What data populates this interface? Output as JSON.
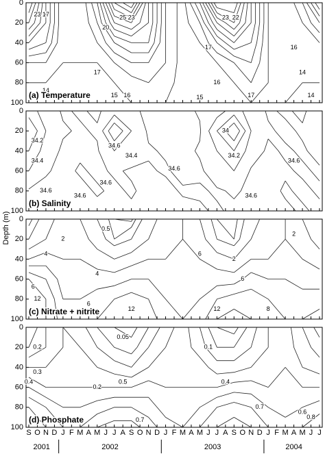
{
  "ylabel": "Depth (m)",
  "x_axis": {
    "categories": [
      "S",
      "O",
      "N",
      "D",
      "J",
      "F",
      "M",
      "A",
      "M",
      "J",
      "J",
      "A",
      "S",
      "O",
      "N",
      "D",
      "J",
      "F",
      "M",
      "A",
      "M",
      "J",
      "J",
      "A",
      "S",
      "O",
      "N",
      "D",
      "J",
      "F",
      "M",
      "A",
      "M",
      "J",
      "J"
    ],
    "years": [
      "2001",
      "2002",
      "2003",
      "2004"
    ]
  },
  "chart_data": [
    {
      "type": "contour",
      "title": "(a) Temperature",
      "xlim": [
        0,
        34
      ],
      "ylim": [
        0,
        100
      ],
      "y_inverted": true,
      "yticks": [
        0,
        20,
        40,
        60,
        80,
        100
      ],
      "x": [
        0,
        2,
        4,
        6,
        8,
        10,
        12,
        14,
        16,
        18,
        20,
        22,
        24,
        26,
        28,
        30,
        32,
        34
      ],
      "y": [
        0,
        20,
        40,
        60,
        80,
        100
      ],
      "z": [
        [
          24,
          22,
          19,
          16,
          15,
          14
        ],
        [
          19,
          19,
          18,
          16,
          15,
          14
        ],
        [
          15,
          15,
          15,
          15,
          14.5,
          14
        ],
        [
          15,
          15,
          15,
          15,
          14.5,
          14
        ],
        [
          18,
          17,
          16,
          15,
          14.5,
          14
        ],
        [
          24,
          21,
          18,
          16,
          15,
          14.5
        ],
        [
          26,
          22,
          19,
          17,
          15.5,
          15
        ],
        [
          20,
          20,
          19,
          17,
          16,
          15
        ],
        [
          16,
          16,
          16,
          16,
          15.5,
          15
        ],
        [
          14.5,
          14.5,
          14.5,
          14.5,
          14.5,
          14
        ],
        [
          18,
          16,
          15,
          14.5,
          14,
          14
        ],
        [
          24,
          20,
          17,
          15,
          14.5,
          14
        ],
        [
          24,
          22,
          19,
          16,
          15,
          14.5
        ],
        [
          19,
          19,
          18,
          17,
          16,
          15
        ],
        [
          15,
          15,
          15,
          15,
          15,
          14.5
        ],
        [
          14,
          14,
          14,
          14,
          14,
          14
        ],
        [
          16,
          15,
          14.5,
          14,
          14,
          13.5
        ],
        [
          20,
          17,
          15,
          14.5,
          14,
          13.5
        ]
      ],
      "levels": [
        14,
        15,
        16,
        17,
        18,
        19,
        20,
        21,
        22,
        23,
        24,
        25
      ],
      "contour_labels": [
        {
          "x": 1,
          "y": 12,
          "value": 23
        },
        {
          "x": 2,
          "y": 12,
          "value": 17
        },
        {
          "x": 9,
          "y": 25,
          "value": 20
        },
        {
          "x": 11,
          "y": 15,
          "value": 25
        },
        {
          "x": 12,
          "y": 15,
          "value": 23
        },
        {
          "x": 8,
          "y": 70,
          "value": 17
        },
        {
          "x": 10,
          "y": 93,
          "value": 15
        },
        {
          "x": 11.5,
          "y": 93,
          "value": 16
        },
        {
          "x": 2,
          "y": 88,
          "value": 14
        },
        {
          "x": 23,
          "y": 15,
          "value": 23
        },
        {
          "x": 24.2,
          "y": 15,
          "value": 22
        },
        {
          "x": 21,
          "y": 45,
          "value": 17
        },
        {
          "x": 22,
          "y": 80,
          "value": 16
        },
        {
          "x": 20,
          "y": 95,
          "value": 15
        },
        {
          "x": 31,
          "y": 45,
          "value": 16
        },
        {
          "x": 32,
          "y": 70,
          "value": 14
        },
        {
          "x": 33,
          "y": 93,
          "value": 14
        },
        {
          "x": 26,
          "y": 93,
          "value": 17
        }
      ]
    },
    {
      "type": "contour",
      "title": "(b) Salinity",
      "xlim": [
        0,
        34
      ],
      "ylim": [
        0,
        100
      ],
      "y_inverted": true,
      "yticks": [
        0,
        20,
        40,
        60,
        80,
        100
      ],
      "x": [
        0,
        2,
        4,
        6,
        8,
        10,
        12,
        14,
        16,
        18,
        20,
        22,
        24,
        26,
        28,
        30,
        32,
        34
      ],
      "y": [
        0,
        20,
        40,
        60,
        80,
        100
      ],
      "z": [
        [
          34.3,
          34.0,
          34.2,
          34.4,
          34.62,
          34.63
        ],
        [
          34.5,
          34.4,
          34.5,
          34.58,
          34.65,
          34.62
        ],
        [
          34.62,
          34.58,
          34.63,
          34.65,
          34.65,
          34.65
        ],
        [
          34.58,
          34.62,
          34.63,
          34.58,
          34.65,
          34.65
        ],
        [
          34.63,
          34.58,
          34.62,
          34.63,
          34.58,
          34.65
        ],
        [
          34.5,
          34.0,
          34.4,
          34.58,
          34.63,
          34.62
        ],
        [
          34.58,
          34.4,
          34.5,
          34.62,
          34.58,
          34.63
        ],
        [
          34.62,
          34.63,
          34.58,
          34.62,
          34.65,
          34.65
        ],
        [
          34.65,
          34.65,
          34.62,
          34.58,
          34.65,
          34.65
        ],
        [
          34.65,
          34.65,
          34.65,
          34.65,
          34.58,
          34.65
        ],
        [
          34.58,
          34.62,
          34.58,
          34.63,
          34.58,
          34.62
        ],
        [
          34.5,
          34.2,
          34.4,
          34.5,
          34.62,
          34.58
        ],
        [
          34.3,
          33.8,
          34.2,
          34.4,
          34.58,
          34.63
        ],
        [
          34.5,
          34.4,
          34.5,
          34.62,
          34.63,
          34.65
        ],
        [
          34.62,
          34.58,
          34.63,
          34.62,
          34.65,
          34.65
        ],
        [
          34.58,
          34.63,
          34.58,
          34.62,
          34.58,
          34.63
        ],
        [
          34.63,
          34.58,
          34.62,
          34.58,
          34.63,
          34.58
        ],
        [
          34.5,
          34.5,
          34.55,
          34.62,
          34.58,
          34.63
        ]
      ],
      "levels": [
        33.8,
        34.0,
        34.2,
        34.4,
        34.6
      ],
      "contour_labels": [
        {
          "x": 1,
          "y": 30,
          "value": 34.2
        },
        {
          "x": 1,
          "y": 50,
          "value": 34.4
        },
        {
          "x": 2,
          "y": 80,
          "value": 34.6
        },
        {
          "x": 10,
          "y": 35,
          "value": 34.6
        },
        {
          "x": 12,
          "y": 45,
          "value": 34.4
        },
        {
          "x": 6,
          "y": 85,
          "value": 34.6
        },
        {
          "x": 9,
          "y": 72,
          "value": 34.6
        },
        {
          "x": 17,
          "y": 58,
          "value": 34.6
        },
        {
          "x": 23,
          "y": 20,
          "value": 34.0
        },
        {
          "x": 24,
          "y": 45,
          "value": 34.2
        },
        {
          "x": 26,
          "y": 85,
          "value": 34.6
        },
        {
          "x": 31,
          "y": 50,
          "value": 34.6
        }
      ]
    },
    {
      "type": "contour",
      "title": "(c) Nitrate + nitrite",
      "xlim": [
        0,
        34
      ],
      "ylim": [
        0,
        100
      ],
      "y_inverted": true,
      "yticks": [
        0,
        20,
        40,
        60,
        80,
        100
      ],
      "x": [
        0,
        2,
        4,
        6,
        8,
        10,
        12,
        14,
        16,
        18,
        20,
        22,
        24,
        26,
        28,
        30,
        32,
        34
      ],
      "y": [
        0,
        20,
        40,
        60,
        80,
        100
      ],
      "z": [
        [
          0.5,
          2,
          6,
          12,
          13,
          13
        ],
        [
          3,
          4,
          7,
          10,
          12,
          12
        ],
        [
          5,
          5,
          6,
          7,
          8,
          9
        ],
        [
          4,
          5,
          6,
          7,
          8,
          9
        ],
        [
          2,
          3,
          5,
          7,
          9,
          10
        ],
        [
          0.5,
          1,
          4,
          7,
          10,
          12
        ],
        [
          0.3,
          2,
          5,
          8,
          11,
          12
        ],
        [
          3,
          4,
          6,
          8,
          10,
          11
        ],
        [
          5,
          5,
          6,
          7,
          8,
          9
        ],
        [
          6,
          6,
          6,
          7,
          7,
          8
        ],
        [
          4,
          5,
          6,
          7,
          8,
          9
        ],
        [
          1,
          2,
          5,
          7,
          10,
          12
        ],
        [
          0.5,
          1,
          4,
          7,
          11,
          13
        ],
        [
          3,
          4,
          6,
          9,
          11,
          12
        ],
        [
          5,
          5,
          6,
          8,
          10,
          11
        ],
        [
          6,
          6,
          7,
          8,
          9,
          10
        ],
        [
          4,
          5,
          6,
          7,
          9,
          10
        ],
        [
          2,
          3,
          5,
          7,
          9,
          11
        ]
      ],
      "levels": [
        0.5,
        1,
        2,
        4,
        6,
        8,
        10,
        12
      ],
      "contour_labels": [
        {
          "x": 1,
          "y": 80,
          "value": 12
        },
        {
          "x": 0.5,
          "y": 68,
          "value": 6
        },
        {
          "x": 2,
          "y": 35,
          "value": 4
        },
        {
          "x": 4,
          "y": 20,
          "value": 2
        },
        {
          "x": 9,
          "y": 10,
          "value": 0.5
        },
        {
          "x": 8,
          "y": 55,
          "value": 4
        },
        {
          "x": 7,
          "y": 85,
          "value": 6
        },
        {
          "x": 12,
          "y": 90,
          "value": 12
        },
        {
          "x": 20,
          "y": 35,
          "value": 6
        },
        {
          "x": 22,
          "y": 90,
          "value": 12
        },
        {
          "x": 24,
          "y": 40,
          "value": 2
        },
        {
          "x": 25,
          "y": 60,
          "value": 6
        },
        {
          "x": 28,
          "y": 90,
          "value": 8
        },
        {
          "x": 31,
          "y": 15,
          "value": 2
        }
      ]
    },
    {
      "type": "contour",
      "title": "(d) Phosphate",
      "xlim": [
        0,
        34
      ],
      "ylim": [
        0,
        100
      ],
      "y_inverted": true,
      "yticks": [
        0,
        20,
        40,
        60,
        80,
        100
      ],
      "x": [
        0,
        2,
        4,
        6,
        8,
        10,
        12,
        14,
        16,
        18,
        20,
        22,
        24,
        26,
        28,
        30,
        32,
        34
      ],
      "y": [
        0,
        20,
        40,
        60,
        80,
        100
      ],
      "z": [
        [
          0.1,
          0.2,
          0.4,
          0.6,
          0.8,
          0.9
        ],
        [
          0.3,
          0.3,
          0.4,
          0.5,
          0.7,
          0.8
        ],
        [
          0.4,
          0.4,
          0.45,
          0.5,
          0.6,
          0.7
        ],
        [
          0.35,
          0.4,
          0.45,
          0.5,
          0.6,
          0.7
        ],
        [
          0.2,
          0.3,
          0.4,
          0.5,
          0.65,
          0.8
        ],
        [
          0.1,
          0.2,
          0.35,
          0.5,
          0.7,
          0.85
        ],
        [
          0.05,
          0.15,
          0.3,
          0.5,
          0.7,
          0.85
        ],
        [
          0.2,
          0.3,
          0.4,
          0.55,
          0.65,
          0.75
        ],
        [
          0.35,
          0.4,
          0.45,
          0.5,
          0.55,
          0.65
        ],
        [
          0.45,
          0.45,
          0.45,
          0.5,
          0.55,
          0.6
        ],
        [
          0.3,
          0.35,
          0.45,
          0.5,
          0.6,
          0.7
        ],
        [
          0.1,
          0.2,
          0.35,
          0.5,
          0.7,
          0.8
        ],
        [
          0.05,
          0.2,
          0.35,
          0.55,
          0.75,
          0.85
        ],
        [
          0.25,
          0.3,
          0.4,
          0.55,
          0.7,
          0.8
        ],
        [
          0.4,
          0.4,
          0.45,
          0.5,
          0.6,
          0.7
        ],
        [
          0.45,
          0.45,
          0.5,
          0.5,
          0.55,
          0.65
        ],
        [
          0.3,
          0.35,
          0.4,
          0.5,
          0.6,
          0.7
        ],
        [
          0.15,
          0.25,
          0.35,
          0.5,
          0.65,
          0.8
        ]
      ],
      "levels": [
        0.05,
        0.1,
        0.2,
        0.3,
        0.4,
        0.5,
        0.6,
        0.7,
        0.8
      ],
      "contour_labels": [
        {
          "x": 0,
          "y": 55,
          "value": 0.4
        },
        {
          "x": 1,
          "y": 20,
          "value": 0.2
        },
        {
          "x": 1,
          "y": 45,
          "value": 0.3
        },
        {
          "x": 8,
          "y": 60,
          "value": 0.2
        },
        {
          "x": 11,
          "y": 10,
          "value": 0.05
        },
        {
          "x": 11,
          "y": 55,
          "value": 0.5
        },
        {
          "x": 13,
          "y": 93,
          "value": 0.7
        },
        {
          "x": 21,
          "y": 20,
          "value": 0.1
        },
        {
          "x": 23,
          "y": 55,
          "value": 0.4
        },
        {
          "x": 27,
          "y": 80,
          "value": 0.7
        },
        {
          "x": 32,
          "y": 85,
          "value": 0.6
        },
        {
          "x": 33,
          "y": 90,
          "value": 0.8
        }
      ]
    }
  ]
}
